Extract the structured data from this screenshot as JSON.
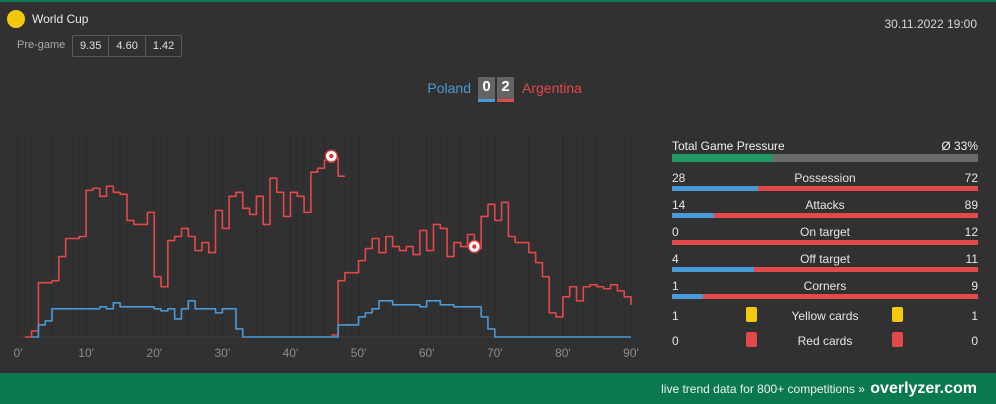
{
  "competition": {
    "name": "World Cup",
    "icon": "trophy-dot-icon",
    "icon_color": "#f4c90b"
  },
  "datetime": "30.11.2022 19:00",
  "pregame": {
    "label": "Pre-game",
    "odds": [
      "9.35",
      "4.60",
      "1.42"
    ]
  },
  "match": {
    "home": {
      "name": "Poland",
      "score": "0",
      "color": "#4b9ad8"
    },
    "away": {
      "name": "Argentina",
      "score": "2",
      "color": "#e3484b"
    }
  },
  "stats": {
    "total_pressure": {
      "label": "Total Game Pressure",
      "value": "Ø 33%",
      "fraction": 0.33
    },
    "rows": [
      {
        "name": "Possession",
        "home": "28",
        "away": "72"
      },
      {
        "name": "Attacks",
        "home": "14",
        "away": "89"
      },
      {
        "name": "On target",
        "home": "0",
        "away": "12"
      },
      {
        "name": "Off target",
        "home": "4",
        "away": "11"
      },
      {
        "name": "Corners",
        "home": "1",
        "away": "9"
      }
    ],
    "cards": [
      {
        "name": "Yellow cards",
        "home": "1",
        "away": "1",
        "color": "#f4c90b"
      },
      {
        "name": "Red cards",
        "home": "0",
        "away": "0",
        "color": "#e3484b"
      }
    ]
  },
  "chart_data": {
    "type": "line",
    "x_ticks": [
      "0'",
      "10'",
      "20'",
      "30'",
      "40'",
      "50'",
      "60'",
      "70'",
      "80'",
      "90'"
    ],
    "xlim": [
      0,
      90
    ],
    "ylim": [
      0,
      100
    ],
    "goal_markers": [
      {
        "minute": 46,
        "team": "away"
      },
      {
        "minute": 67,
        "team": "away"
      }
    ],
    "series": [
      {
        "team": "away",
        "color": "#e3484b",
        "points": [
          [
            1,
            0
          ],
          [
            2,
            3
          ],
          [
            3,
            27
          ],
          [
            5,
            28
          ],
          [
            6,
            40
          ],
          [
            7,
            49
          ],
          [
            9,
            50
          ],
          [
            10,
            73
          ],
          [
            11,
            74
          ],
          [
            12,
            70
          ],
          [
            13,
            75
          ],
          [
            14,
            72
          ],
          [
            15,
            71
          ],
          [
            16,
            58
          ],
          [
            17,
            56
          ],
          [
            19,
            62
          ],
          [
            20,
            30
          ],
          [
            21,
            25
          ],
          [
            22,
            48
          ],
          [
            23,
            50
          ],
          [
            24,
            54
          ],
          [
            25,
            50
          ],
          [
            26,
            43
          ],
          [
            27,
            47
          ],
          [
            28,
            42
          ],
          [
            29,
            63
          ],
          [
            30,
            54
          ],
          [
            31,
            70
          ],
          [
            32,
            72
          ],
          [
            33,
            64
          ],
          [
            34,
            61
          ],
          [
            35,
            70
          ],
          [
            36,
            56
          ],
          [
            37,
            79
          ],
          [
            38,
            72
          ],
          [
            39,
            60
          ],
          [
            40,
            72
          ],
          [
            41,
            70
          ],
          [
            42,
            62
          ],
          [
            43,
            82
          ],
          [
            44,
            84
          ],
          [
            45,
            88
          ],
          [
            46,
            89
          ],
          [
            47,
            80
          ],
          [
            48,
            80
          ]
        ]
      },
      {
        "team": "away",
        "color": "#e3484b",
        "points": [
          [
            46,
            1
          ],
          [
            47,
            28
          ],
          [
            48,
            32
          ],
          [
            50,
            38
          ],
          [
            51,
            44
          ],
          [
            52,
            49
          ],
          [
            53,
            42
          ],
          [
            54,
            50
          ],
          [
            55,
            45
          ],
          [
            56,
            43
          ],
          [
            57,
            45
          ],
          [
            58,
            41
          ],
          [
            59,
            53
          ],
          [
            60,
            43
          ],
          [
            61,
            56
          ],
          [
            62,
            54
          ],
          [
            63,
            40
          ],
          [
            64,
            47
          ],
          [
            65,
            45
          ],
          [
            66,
            51
          ],
          [
            67,
            44
          ],
          [
            68,
            60
          ],
          [
            69,
            66
          ],
          [
            70,
            58
          ],
          [
            71,
            67
          ],
          [
            72,
            50
          ],
          [
            73,
            47
          ],
          [
            74,
            47
          ],
          [
            75,
            42
          ],
          [
            76,
            37
          ],
          [
            77,
            30
          ],
          [
            78,
            12
          ],
          [
            79,
            10
          ],
          [
            80,
            20
          ],
          [
            81,
            25
          ],
          [
            82,
            18
          ],
          [
            83,
            25
          ],
          [
            84,
            26
          ],
          [
            85,
            25
          ],
          [
            86,
            24
          ],
          [
            87,
            26
          ],
          [
            88,
            23
          ],
          [
            89,
            20
          ],
          [
            90,
            16
          ]
        ]
      },
      {
        "team": "home",
        "color": "#4b9ad8",
        "points": [
          [
            2,
            0
          ],
          [
            3,
            6
          ],
          [
            4,
            8
          ],
          [
            5,
            14
          ],
          [
            6,
            14
          ],
          [
            11,
            14
          ],
          [
            12,
            15
          ],
          [
            13,
            14
          ],
          [
            14,
            17
          ],
          [
            15,
            15
          ],
          [
            20,
            14
          ],
          [
            21,
            13
          ],
          [
            22,
            14
          ],
          [
            23,
            9
          ],
          [
            24,
            14
          ],
          [
            25,
            18
          ],
          [
            26,
            14
          ],
          [
            28,
            14
          ],
          [
            29,
            12
          ],
          [
            30,
            14
          ],
          [
            31,
            14
          ],
          [
            32,
            4
          ],
          [
            33,
            0
          ],
          [
            46,
            0
          ],
          [
            47,
            6
          ],
          [
            50,
            10
          ],
          [
            51,
            12
          ],
          [
            52,
            14
          ],
          [
            53,
            18
          ],
          [
            55,
            16
          ],
          [
            59,
            15
          ],
          [
            60,
            18
          ],
          [
            61,
            18
          ],
          [
            62,
            16
          ],
          [
            63,
            16
          ],
          [
            64,
            15
          ],
          [
            67,
            15
          ],
          [
            68,
            10
          ],
          [
            69,
            4
          ],
          [
            70,
            0
          ],
          [
            90,
            0
          ]
        ]
      }
    ]
  },
  "footer": {
    "text": "live trend data for 800+ competitions »",
    "brand": "overlyzer.com"
  }
}
